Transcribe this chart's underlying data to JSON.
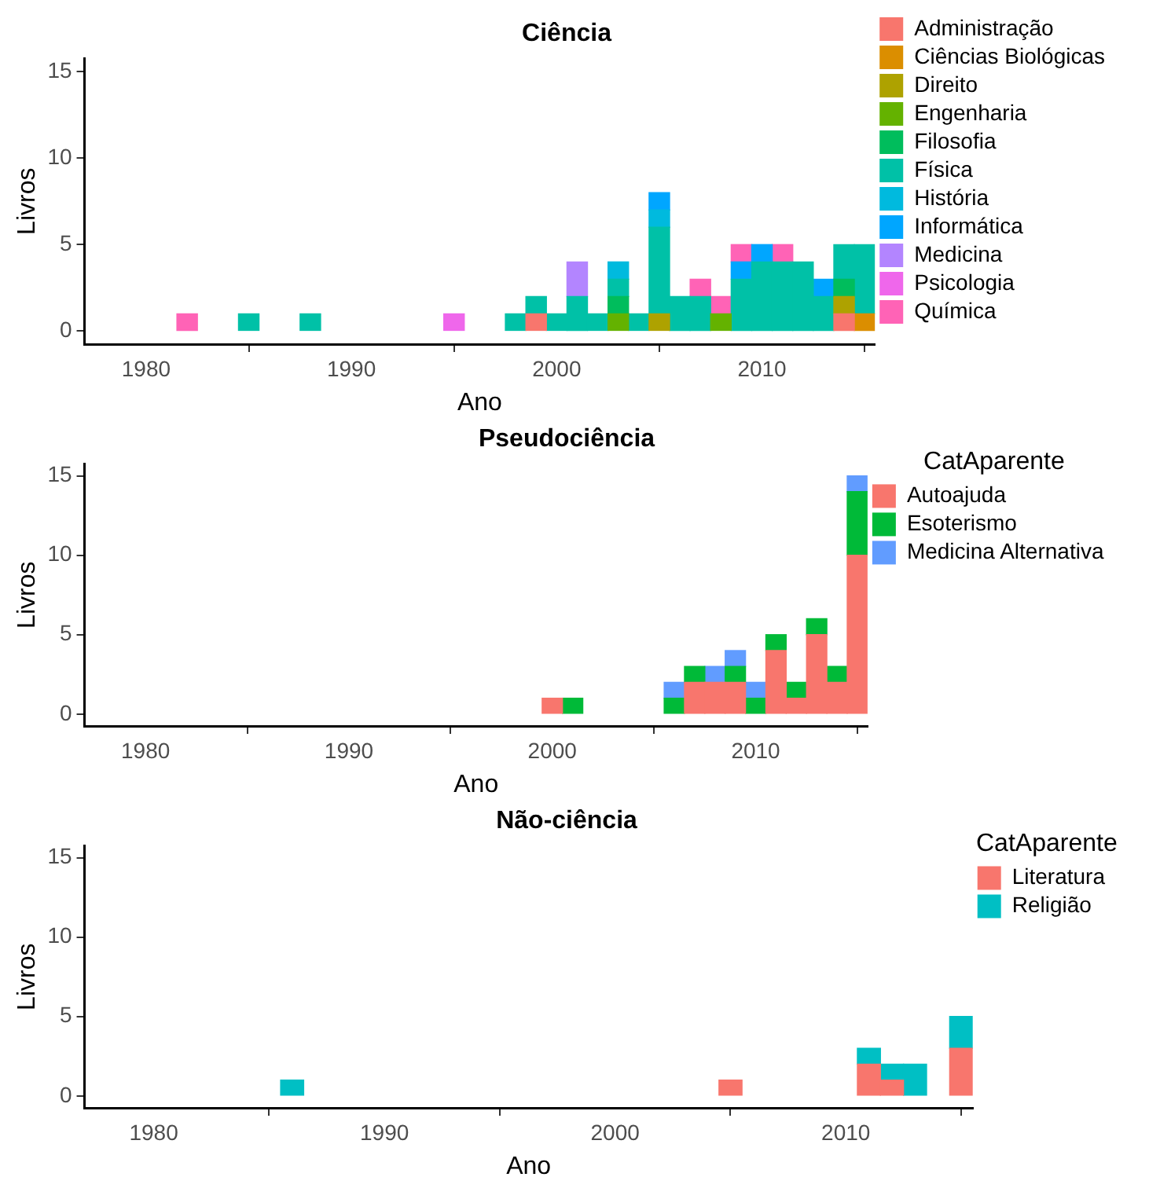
{
  "chart_data": [
    {
      "type": "bar",
      "stacked": true,
      "title": "Ciência",
      "xlabel": "Ano",
      "ylabel": "Livros",
      "xlim": [
        1977,
        2015.5
      ],
      "xticks": [
        1980,
        1990,
        2000,
        2010
      ],
      "ylim": [
        -0.75,
        15.75
      ],
      "yticks": [
        0,
        5,
        10,
        15
      ],
      "grid": false,
      "legend": "right",
      "x": [
        1982,
        1985,
        1988,
        1995,
        1998,
        1999,
        2000,
        2001,
        2002,
        2003,
        2004,
        2005,
        2006,
        2007,
        2008,
        2009,
        2010,
        2011,
        2012,
        2013,
        2014,
        2015
      ],
      "series": [
        {
          "name": "Administração",
          "color": "#F8766D",
          "values": [
            null,
            null,
            null,
            null,
            null,
            1,
            null,
            null,
            null,
            null,
            null,
            null,
            null,
            null,
            null,
            null,
            null,
            null,
            null,
            null,
            1,
            null
          ]
        },
        {
          "name": "Ciências Biológicas",
          "color": "#DB8E00",
          "values": [
            null,
            null,
            null,
            null,
            null,
            null,
            null,
            null,
            null,
            null,
            null,
            null,
            null,
            null,
            null,
            null,
            null,
            null,
            null,
            null,
            null,
            1
          ]
        },
        {
          "name": "Direito",
          "color": "#AEA200",
          "values": [
            null,
            null,
            null,
            null,
            null,
            null,
            null,
            null,
            null,
            null,
            null,
            1,
            null,
            null,
            null,
            null,
            null,
            null,
            null,
            null,
            1,
            null
          ]
        },
        {
          "name": "Engenharia",
          "color": "#64B200",
          "values": [
            null,
            null,
            null,
            null,
            null,
            null,
            null,
            null,
            null,
            1,
            null,
            null,
            null,
            null,
            1,
            null,
            null,
            null,
            null,
            null,
            null,
            null
          ]
        },
        {
          "name": "Filosofia",
          "color": "#00BD5C",
          "values": [
            null,
            null,
            null,
            null,
            null,
            null,
            null,
            null,
            null,
            1,
            null,
            null,
            null,
            null,
            null,
            null,
            null,
            null,
            null,
            null,
            1,
            null
          ]
        },
        {
          "name": "Física",
          "color": "#00C1A7",
          "values": [
            null,
            1,
            1,
            null,
            1,
            1,
            1,
            2,
            1,
            1,
            1,
            5,
            2,
            2,
            null,
            3,
            4,
            4,
            4,
            2,
            2,
            4
          ]
        },
        {
          "name": "História",
          "color": "#00BADE",
          "values": [
            null,
            null,
            null,
            null,
            null,
            null,
            null,
            null,
            null,
            1,
            null,
            1,
            null,
            null,
            null,
            null,
            null,
            null,
            null,
            null,
            null,
            null
          ]
        },
        {
          "name": "Informática",
          "color": "#00A6FF",
          "values": [
            null,
            null,
            null,
            null,
            null,
            null,
            null,
            null,
            null,
            null,
            null,
            1,
            null,
            null,
            null,
            1,
            1,
            null,
            null,
            1,
            null,
            null
          ]
        },
        {
          "name": "Medicina",
          "color": "#B385FF",
          "values": [
            null,
            null,
            null,
            null,
            null,
            null,
            null,
            2,
            null,
            null,
            null,
            null,
            null,
            null,
            null,
            null,
            null,
            null,
            null,
            null,
            null,
            null
          ]
        },
        {
          "name": "Psicologia",
          "color": "#EF67EB",
          "values": [
            null,
            null,
            null,
            1,
            null,
            null,
            null,
            null,
            null,
            null,
            null,
            null,
            null,
            null,
            null,
            null,
            null,
            null,
            null,
            null,
            null,
            null
          ]
        },
        {
          "name": "Química",
          "color": "#FF63B6",
          "values": [
            1,
            null,
            null,
            null,
            null,
            null,
            null,
            null,
            null,
            null,
            null,
            null,
            null,
            1,
            1,
            1,
            null,
            1,
            null,
            null,
            null,
            null
          ]
        }
      ]
    },
    {
      "type": "bar",
      "stacked": true,
      "title": "Pseudociência",
      "xlabel": "Ano",
      "ylabel": "Livros",
      "legend_title": "CatAparente",
      "xlim": [
        1977,
        2015.5
      ],
      "xticks": [
        1980,
        1990,
        2000,
        2010
      ],
      "ylim": [
        -0.75,
        15.75
      ],
      "yticks": [
        0,
        5,
        10,
        15
      ],
      "grid": false,
      "legend": "right",
      "x": [
        2000,
        2001,
        2006,
        2007,
        2008,
        2009,
        2010,
        2011,
        2012,
        2013,
        2014,
        2015
      ],
      "series": [
        {
          "name": "Autoajuda",
          "color": "#F8766D",
          "values": [
            1,
            null,
            null,
            2,
            2,
            2,
            null,
            4,
            1,
            5,
            2,
            10
          ]
        },
        {
          "name": "Esoterismo",
          "color": "#00BA38",
          "values": [
            null,
            1,
            1,
            1,
            null,
            1,
            1,
            1,
            1,
            1,
            1,
            4
          ]
        },
        {
          "name": "Medicina Alternativa",
          "color": "#619CFF",
          "values": [
            null,
            null,
            1,
            null,
            1,
            1,
            1,
            null,
            null,
            null,
            null,
            1
          ]
        }
      ]
    },
    {
      "type": "bar",
      "stacked": true,
      "title": "Não-ciência",
      "xlabel": "Ano",
      "ylabel": "Livros",
      "legend_title": "CatAparente",
      "xlim": [
        1977,
        2015.5
      ],
      "xticks": [
        1980,
        1990,
        2000,
        2010
      ],
      "ylim": [
        -0.75,
        15.75
      ],
      "yticks": [
        0,
        5,
        10,
        15
      ],
      "grid": false,
      "legend": "right",
      "x": [
        1986,
        2005,
        2011,
        2012,
        2013,
        2015
      ],
      "series": [
        {
          "name": "Literatura",
          "color": "#F8766D",
          "values": [
            null,
            1,
            2,
            1,
            null,
            3
          ]
        },
        {
          "name": "Religião",
          "color": "#00BFC4",
          "values": [
            1,
            null,
            1,
            1,
            2,
            2
          ]
        }
      ]
    }
  ]
}
